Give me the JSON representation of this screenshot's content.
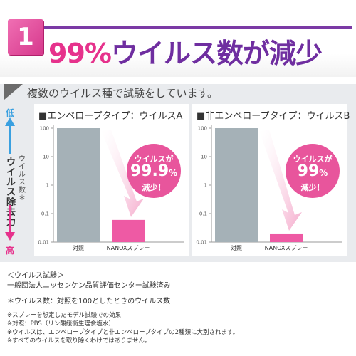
{
  "header": {
    "number": "1",
    "title_pct": "99%",
    "title_rest": "ウイルス数が減少"
  },
  "subtitle": "複数のウイルス種で試験をしています。",
  "side_axis": {
    "low": "低",
    "high": "高",
    "label": "ウイルス除去力",
    "sub_label": "ウイルス数＊"
  },
  "colors": {
    "accent_pink": "#e6328c",
    "accent_purple": "#6f2ea0",
    "bar_control": "#a5b1b7",
    "bar_nanox": "#ee5aa4"
  },
  "chart_data": [
    {
      "type": "bar",
      "title": "■エンベロープタイプ：ウイルスA",
      "categories": [
        "対照",
        "NANOXスプレー"
      ],
      "values": [
        100,
        0.06
      ],
      "yscale": "log",
      "ylim": [
        0.01,
        100
      ],
      "yticks": [
        "100",
        "10",
        "1",
        "0.1",
        "0.01"
      ],
      "callout": {
        "line1": "ウイルスが",
        "value": "99.9",
        "unit": "%",
        "line3": "減少！"
      }
    },
    {
      "type": "bar",
      "title": "■非エンベロープタイプ：ウイルスB",
      "categories": [
        "対照",
        "NANOXスプレー"
      ],
      "values": [
        100,
        0.02
      ],
      "yscale": "log",
      "ylim": [
        0.01,
        100
      ],
      "yticks": [
        "100",
        "10",
        "1",
        "0.1",
        "0.01"
      ],
      "callout": {
        "line1": "ウイルスが",
        "value": "99",
        "unit": "%",
        "line3": "減少！"
      }
    }
  ],
  "notes": {
    "heading": "＜ウイルス試験＞",
    "line1": "一般団法人ニッセンケン品質評価センター試験済み",
    "line2": "＊ウイルス数：対照を100としたときのウイルス数",
    "line3": "※スプレーを想定したモデル試験での効果",
    "line4": "※対照：PBS（リン酸緩衝生理食塩水）",
    "line5": "※ウイルスは、エンベロープタイプと非エンベロープタイプの2種類に大別されます。",
    "line6": "※すべてのウイルスを取り除くわけではありません。"
  }
}
